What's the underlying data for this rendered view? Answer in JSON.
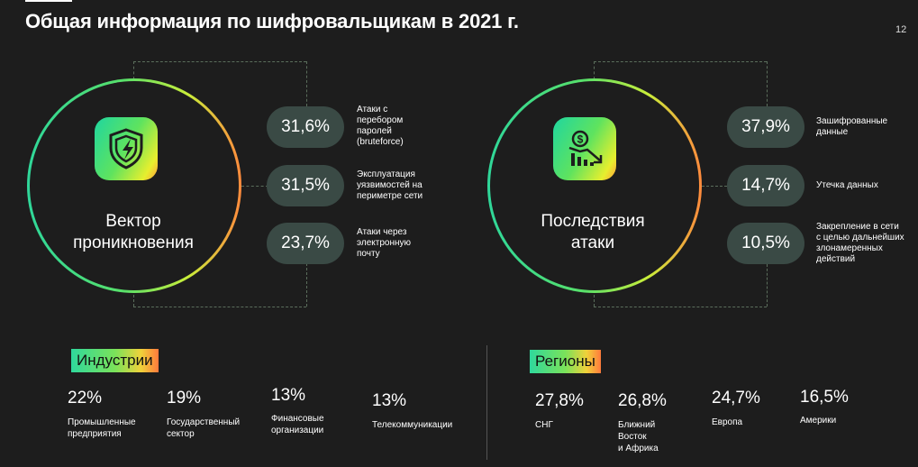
{
  "title": "Общая информация по шифровальщикам в 2021 г.",
  "page_number": "12",
  "left_section": {
    "center_label_line1": "Вектор",
    "center_label_line2": "проникновения",
    "icon": "shield-lightning-icon",
    "items": [
      {
        "value": "31,6%",
        "label_lines": [
          "Атаки с",
          "перебором",
          "паролей",
          "(bruteforce)"
        ]
      },
      {
        "value": "31,5%",
        "label_lines": [
          "Эксплуатация",
          "уязвимостей на",
          "периметре сети"
        ]
      },
      {
        "value": "23,7%",
        "label_lines": [
          "Атаки через",
          "электронную",
          "почту"
        ]
      }
    ]
  },
  "right_section": {
    "center_label_line1": "Последствия",
    "center_label_line2": "атаки",
    "icon": "money-chart-down-icon",
    "items": [
      {
        "value": "37,9%",
        "label_lines": [
          "Зашифрованные",
          "данные"
        ]
      },
      {
        "value": "14,7%",
        "label_lines": [
          "Утечка данных"
        ]
      },
      {
        "value": "10,5%",
        "label_lines": [
          "Закрепление в сети",
          "с целью дальнейших",
          "злонамеренных",
          "действий"
        ]
      }
    ]
  },
  "industries": {
    "heading": "Индустрии",
    "items": [
      {
        "value": "22%",
        "label_lines": [
          "Промышленные",
          "предприятия"
        ]
      },
      {
        "value": "19%",
        "label_lines": [
          "Государственный",
          "сектор"
        ]
      },
      {
        "value": "13%",
        "label_lines": [
          "Финансовые",
          "организации"
        ]
      },
      {
        "value": "13%",
        "label_lines": [
          "Телекоммуникации"
        ]
      }
    ]
  },
  "regions": {
    "heading": "Регионы",
    "items": [
      {
        "value": "27,8%",
        "label_lines": [
          "СНГ"
        ]
      },
      {
        "value": "26,8%",
        "label_lines": [
          "Ближний",
          "Восток",
          "и Африка"
        ]
      },
      {
        "value": "24,7%",
        "label_lines": [
          "Европа"
        ]
      },
      {
        "value": "16,5%",
        "label_lines": [
          "Америки"
        ]
      }
    ]
  },
  "colors": {
    "background": "#1d1d1d",
    "pill": "#3a4a45",
    "gradient_start": "#2fd79a",
    "gradient_mid": "#c9ee3a",
    "gradient_end": "#ff8a3d"
  }
}
